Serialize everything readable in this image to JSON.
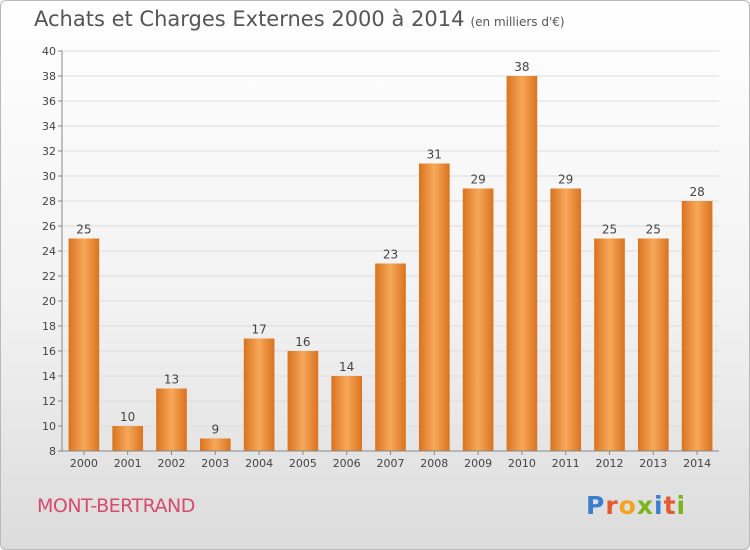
{
  "title": "Achats et Charges Externes 2000 à 2014",
  "title_unit": "(en milliers d'€)",
  "commune": "MONT-BERTRAND",
  "logo": {
    "text": "Proxiti",
    "letters": [
      {
        "ch": "P",
        "color": "#3b7fd1"
      },
      {
        "ch": "r",
        "color": "#e65a2f"
      },
      {
        "ch": "o",
        "color": "#f2a21e"
      },
      {
        "ch": "x",
        "color": "#7ab51d"
      },
      {
        "ch": "i",
        "color": "#3b7fd1"
      },
      {
        "ch": "t",
        "color": "#e65a2f"
      },
      {
        "ch": "i",
        "color": "#7ab51d"
      }
    ]
  },
  "colors": {
    "bar_top": "#f7a85a",
    "bar_bottom": "#d9731f",
    "grid": "#dddddd",
    "axis": "#888888",
    "text": "#444444"
  },
  "chart_data": {
    "type": "bar",
    "categories": [
      "2000",
      "2001",
      "2002",
      "2003",
      "2004",
      "2005",
      "2006",
      "2007",
      "2008",
      "2009",
      "2010",
      "2011",
      "2012",
      "2013",
      "2014"
    ],
    "values": [
      25,
      10,
      13,
      9,
      17,
      16,
      14,
      23,
      31,
      29,
      38,
      29,
      25,
      25,
      28
    ],
    "title": "Achats et Charges Externes 2000 à 2014",
    "ylim": [
      8,
      40
    ],
    "yticks": [
      8,
      10,
      12,
      14,
      16,
      18,
      20,
      22,
      24,
      26,
      28,
      30,
      32,
      34,
      36,
      38,
      40
    ],
    "grid": true,
    "data_labels": true
  }
}
